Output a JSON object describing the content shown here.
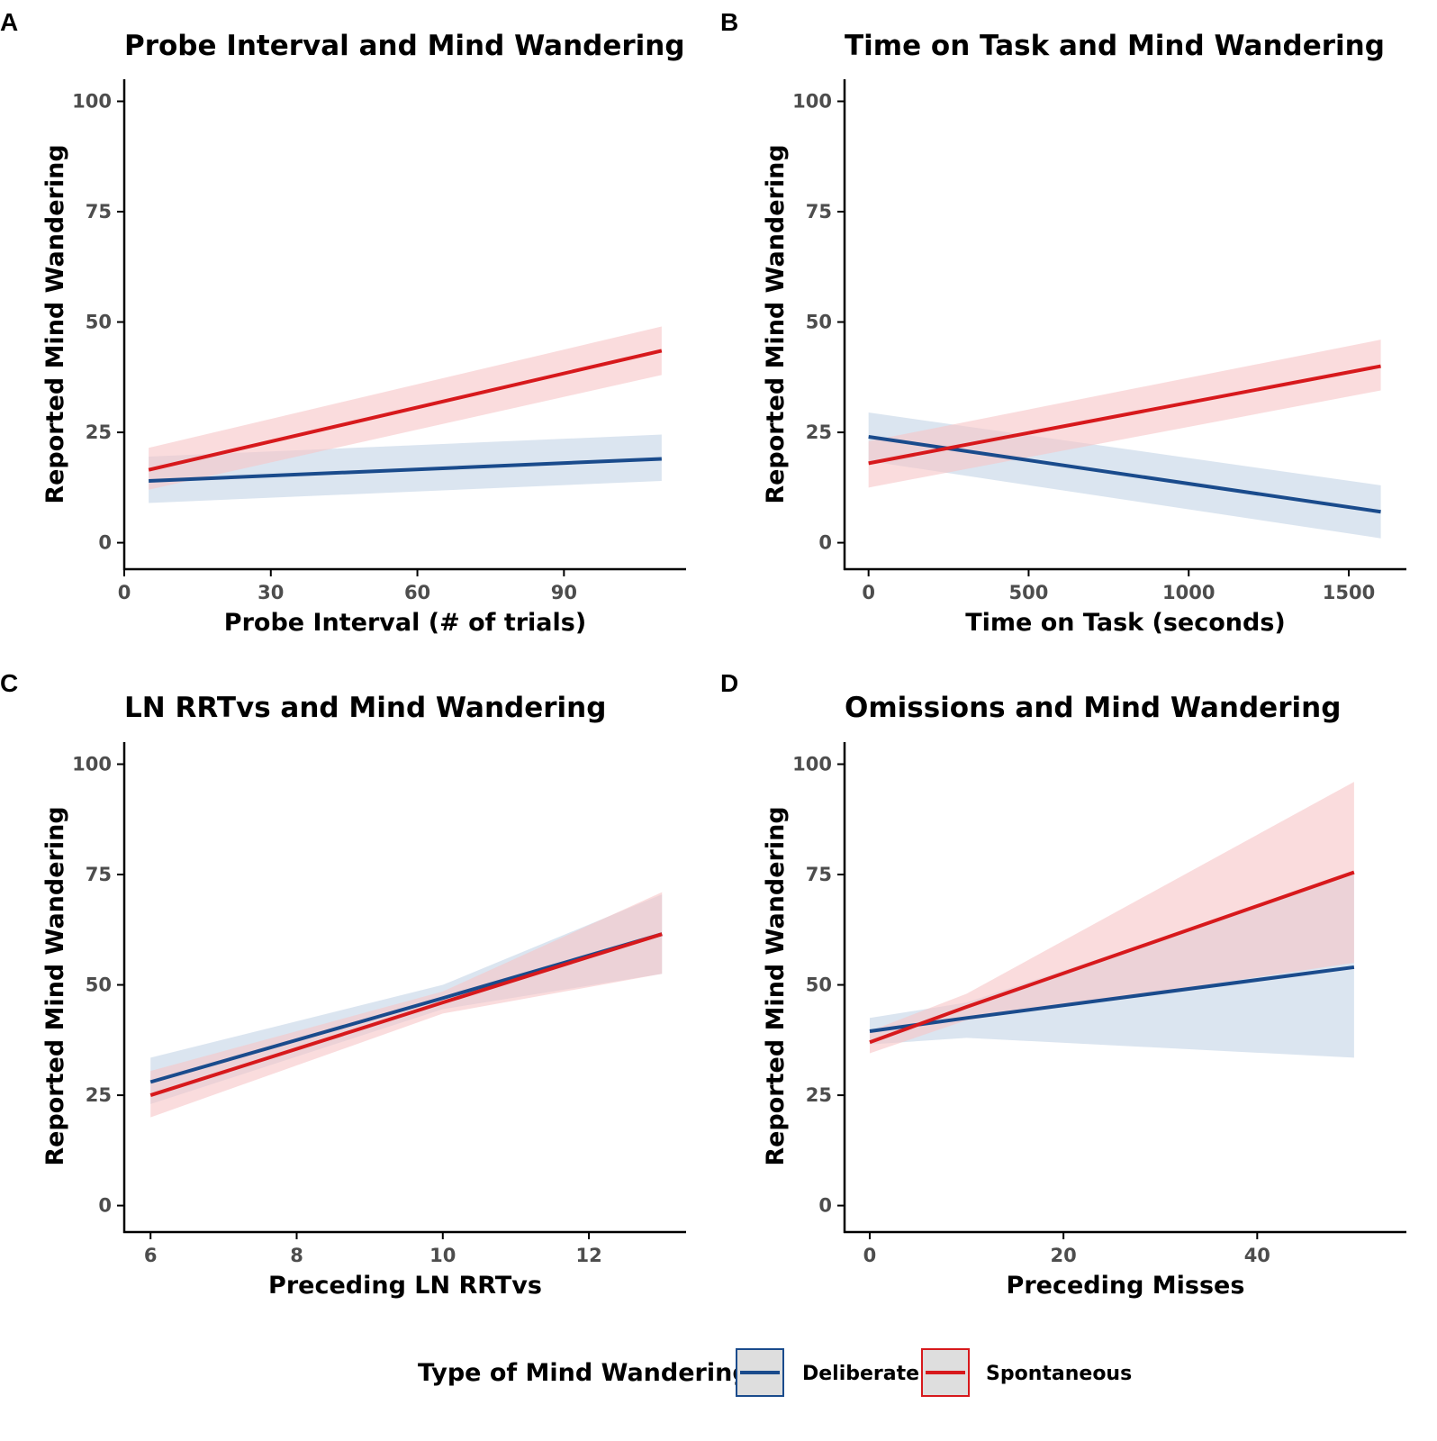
{
  "colors": {
    "deliberate": "#1a4b8c",
    "spontaneous": "#d7191c",
    "deliberate_band": "#c3d3e6",
    "spontaneous_band": "#f6c5c6",
    "axis": "#000000",
    "tick_text": "#4d4d4d",
    "legend_key_bg": "#dedede"
  },
  "legend": {
    "title": "Type of Mind Wandering",
    "items": [
      {
        "label": "Deliberate",
        "series": "deliberate"
      },
      {
        "label": "Spontaneous",
        "series": "spontaneous"
      }
    ]
  },
  "chart_data": [
    {
      "panel": "A",
      "type": "line",
      "title": "Probe Interval and Mind Wandering",
      "xlabel": "Probe Interval (# of trials)",
      "ylabel": "Reported Mind Wandering",
      "xlim": [
        0,
        115
      ],
      "ylim": [
        -6,
        105
      ],
      "xticks": [
        0,
        30,
        60,
        90
      ],
      "yticks": [
        0,
        25,
        50,
        75,
        100
      ],
      "series": [
        {
          "name": "Deliberate",
          "key": "deliberate",
          "x": [
            5,
            110
          ],
          "y": [
            14,
            19
          ],
          "lower": [
            9,
            14
          ],
          "upper": [
            19.5,
            24.5
          ]
        },
        {
          "name": "Spontaneous",
          "key": "spontaneous",
          "x": [
            5,
            110
          ],
          "y": [
            16.5,
            43.5
          ],
          "lower": [
            12,
            38
          ],
          "upper": [
            21.5,
            49
          ]
        }
      ]
    },
    {
      "panel": "B",
      "type": "line",
      "title": "Time on Task and Mind Wandering",
      "xlabel": "Time on Task (seconds)",
      "ylabel": "Reported Mind Wandering",
      "xlim": [
        -75,
        1680
      ],
      "ylim": [
        -6,
        105
      ],
      "xticks": [
        0,
        500,
        1000,
        1500
      ],
      "yticks": [
        0,
        25,
        50,
        75,
        100
      ],
      "series": [
        {
          "name": "Deliberate",
          "key": "deliberate",
          "x": [
            0,
            1600
          ],
          "y": [
            24,
            7
          ],
          "lower": [
            18.5,
            1
          ],
          "upper": [
            29.5,
            13
          ]
        },
        {
          "name": "Spontaneous",
          "key": "spontaneous",
          "x": [
            0,
            1600
          ],
          "y": [
            18,
            40
          ],
          "lower": [
            12.5,
            34.5
          ],
          "upper": [
            23,
            46
          ]
        }
      ]
    },
    {
      "panel": "C",
      "type": "line",
      "title": "LN RRTvs and Mind Wandering",
      "xlabel": "Preceding LN RRTvs",
      "ylabel": "Reported Mind Wandering",
      "xlim": [
        5.64,
        13.33
      ],
      "ylim": [
        -6,
        105
      ],
      "xticks": [
        6,
        8,
        10,
        12
      ],
      "yticks": [
        0,
        25,
        50,
        75,
        100
      ],
      "series": [
        {
          "name": "Deliberate",
          "key": "deliberate",
          "x": [
            6,
            10,
            13
          ],
          "y": [
            28,
            47,
            61.5
          ],
          "lower": [
            23,
            44.5,
            52.5
          ],
          "upper": [
            33.5,
            50,
            70.5
          ]
        },
        {
          "name": "Spontaneous",
          "key": "spontaneous",
          "x": [
            6,
            10,
            13
          ],
          "y": [
            25,
            46,
            61.5
          ],
          "lower": [
            20,
            43.5,
            52.5
          ],
          "upper": [
            30.5,
            48.5,
            71
          ]
        }
      ]
    },
    {
      "panel": "D",
      "type": "line",
      "title": "Omissions and Mind Wandering",
      "xlabel": "Preceding Misses",
      "ylabel": "Reported Mind Wandering",
      "xlim": [
        -2.6,
        55.4
      ],
      "ylim": [
        -6,
        105
      ],
      "xticks": [
        0,
        20,
        40
      ],
      "yticks": [
        0,
        25,
        50,
        75,
        100
      ],
      "series": [
        {
          "name": "Deliberate",
          "key": "deliberate",
          "x": [
            0,
            10,
            50
          ],
          "y": [
            39.5,
            42.5,
            54
          ],
          "lower": [
            36.5,
            38,
            33.5
          ],
          "upper": [
            42.5,
            46,
            75
          ]
        },
        {
          "name": "Spontaneous",
          "key": "spontaneous",
          "x": [
            0,
            10,
            50
          ],
          "y": [
            37,
            45,
            75.5
          ],
          "lower": [
            34.5,
            42,
            55
          ],
          "upper": [
            39.5,
            48,
            96
          ]
        }
      ]
    }
  ]
}
